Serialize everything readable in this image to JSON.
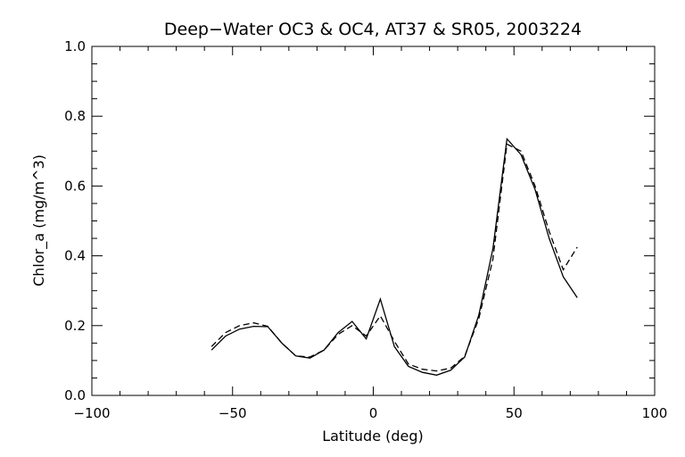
{
  "chart_data": {
    "type": "line",
    "title": "Deep−Water OC3 & OC4, AT37 & SR05, 2003224",
    "xlabel": "Latitude (deg)",
    "ylabel": "Chlor_a (mg/m^3)",
    "xlim": [
      -100,
      100
    ],
    "ylim": [
      0.0,
      1.0
    ],
    "xticks": [
      -100,
      -50,
      0,
      50,
      100
    ],
    "xtick_labels": [
      "−100",
      "−50",
      "0",
      "50",
      "100"
    ],
    "yticks": [
      0.0,
      0.2,
      0.4,
      0.6,
      0.8,
      1.0
    ],
    "ytick_labels": [
      "0.0",
      "0.2",
      "0.4",
      "0.6",
      "0.8",
      "1.0"
    ],
    "grid": false,
    "series": [
      {
        "style": "solid",
        "x": [
          -57.5,
          -52.5,
          -47.5,
          -42.5,
          -37.5,
          -32.5,
          -27.5,
          -22.5,
          -17.5,
          -12.5,
          -7.5,
          -2.5,
          2.5,
          7.5,
          12.5,
          17.5,
          22.5,
          27.5,
          32.5,
          37.5,
          42.5,
          47.5,
          52.5,
          57.5,
          62.5,
          67.5,
          72.5
        ],
        "y": [
          0.13,
          0.17,
          0.19,
          0.198,
          0.197,
          0.15,
          0.113,
          0.107,
          0.13,
          0.18,
          0.212,
          0.162,
          0.276,
          0.14,
          0.083,
          0.066,
          0.058,
          0.072,
          0.11,
          0.23,
          0.42,
          0.735,
          0.69,
          0.59,
          0.45,
          0.34,
          0.28
        ]
      },
      {
        "style": "dashed",
        "x": [
          -57.5,
          -52.5,
          -47.5,
          -42.5,
          -37.5,
          -32.5,
          -27.5,
          -22.5,
          -17.5,
          -12.5,
          -7.5,
          -2.5,
          2.5,
          7.5,
          12.5,
          17.5,
          22.5,
          27.5,
          32.5,
          37.5,
          42.5,
          47.5,
          52.5,
          57.5,
          62.5,
          67.5,
          72.5
        ],
        "y": [
          0.14,
          0.18,
          0.2,
          0.208,
          0.198,
          0.15,
          0.113,
          0.11,
          0.13,
          0.175,
          0.2,
          0.17,
          0.228,
          0.155,
          0.09,
          0.075,
          0.07,
          0.078,
          0.112,
          0.22,
          0.39,
          0.72,
          0.7,
          0.6,
          0.47,
          0.36,
          0.425
        ]
      }
    ]
  }
}
